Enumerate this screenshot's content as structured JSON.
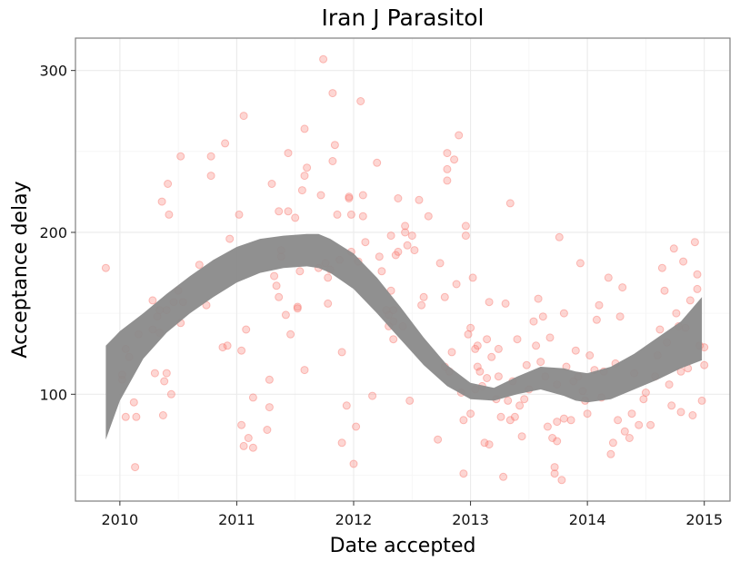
{
  "chart_data": {
    "type": "scatter",
    "title": "Iran J Parasitol",
    "xlabel": "Date accepted",
    "ylabel": "Acceptance delay",
    "xlim": [
      2009.62,
      2015.22
    ],
    "ylim": [
      34,
      320
    ],
    "x_ticks": [
      2010,
      2011,
      2012,
      2013,
      2014,
      2015
    ],
    "x_tick_labels": [
      "2010",
      "2011",
      "2012",
      "2013",
      "2014",
      "2015"
    ],
    "y_ticks": [
      100,
      200,
      300
    ],
    "y_tick_labels": [
      "100",
      "200",
      "300"
    ],
    "grid": true,
    "point_color": "#f8766d",
    "band_color": "#8a8a8a",
    "smooth_band": {
      "x": [
        2009.88,
        2010.0,
        2010.2,
        2010.4,
        2010.6,
        2010.8,
        2011.0,
        2011.2,
        2011.4,
        2011.6,
        2011.7,
        2011.8,
        2012.0,
        2012.2,
        2012.4,
        2012.6,
        2012.8,
        2013.0,
        2013.2,
        2013.4,
        2013.6,
        2013.8,
        2013.9,
        2014.0,
        2014.2,
        2014.4,
        2014.6,
        2014.8,
        2014.98
      ],
      "lower": [
        72,
        96,
        122,
        138,
        150,
        160,
        169,
        175,
        178,
        179,
        178,
        175,
        165,
        150,
        134,
        118,
        105,
        97,
        96,
        100,
        103,
        99,
        96,
        95,
        97,
        103,
        109,
        116,
        121
      ],
      "upper": [
        130,
        139,
        150,
        162,
        173,
        183,
        191,
        196,
        198,
        199,
        199,
        196,
        187,
        172,
        154,
        135,
        118,
        107,
        104,
        111,
        117,
        116,
        114,
        113,
        117,
        125,
        135,
        145,
        160
      ]
    },
    "points": [
      [
        2009.88,
        178
      ],
      [
        2010.02,
        109
      ],
      [
        2010.02,
        112
      ],
      [
        2010.05,
        86
      ],
      [
        2010.05,
        128
      ],
      [
        2010.08,
        123
      ],
      [
        2010.13,
        55
      ],
      [
        2010.12,
        95
      ],
      [
        2010.14,
        86
      ],
      [
        2010.16,
        137
      ],
      [
        2010.28,
        158
      ],
      [
        2010.28,
        140
      ],
      [
        2010.3,
        113
      ],
      [
        2010.32,
        148
      ],
      [
        2010.34,
        152
      ],
      [
        2010.34,
        138
      ],
      [
        2010.36,
        219
      ],
      [
        2010.37,
        87
      ],
      [
        2010.38,
        108
      ],
      [
        2010.4,
        113
      ],
      [
        2010.4,
        152
      ],
      [
        2010.41,
        230
      ],
      [
        2010.42,
        211
      ],
      [
        2010.44,
        100
      ],
      [
        2010.46,
        157
      ],
      [
        2010.5,
        164
      ],
      [
        2010.52,
        247
      ],
      [
        2010.52,
        144
      ],
      [
        2010.54,
        157
      ],
      [
        2010.68,
        180
      ],
      [
        2010.74,
        155
      ],
      [
        2010.78,
        247
      ],
      [
        2010.78,
        235
      ],
      [
        2010.88,
        129
      ],
      [
        2010.9,
        255
      ],
      [
        2010.92,
        130
      ],
      [
        2010.94,
        196
      ],
      [
        2011.02,
        211
      ],
      [
        2011.04,
        81
      ],
      [
        2011.04,
        127
      ],
      [
        2011.06,
        68
      ],
      [
        2011.06,
        272
      ],
      [
        2011.08,
        140
      ],
      [
        2011.1,
        73
      ],
      [
        2011.14,
        67
      ],
      [
        2011.14,
        98
      ],
      [
        2011.26,
        78
      ],
      [
        2011.28,
        109
      ],
      [
        2011.28,
        92
      ],
      [
        2011.3,
        230
      ],
      [
        2011.32,
        173
      ],
      [
        2011.34,
        167
      ],
      [
        2011.36,
        213
      ],
      [
        2011.36,
        160
      ],
      [
        2011.38,
        189
      ],
      [
        2011.38,
        185
      ],
      [
        2011.42,
        149
      ],
      [
        2011.44,
        213
      ],
      [
        2011.44,
        249
      ],
      [
        2011.46,
        137
      ],
      [
        2011.5,
        209
      ],
      [
        2011.52,
        154
      ],
      [
        2011.52,
        153
      ],
      [
        2011.54,
        176
      ],
      [
        2011.56,
        226
      ],
      [
        2011.58,
        264
      ],
      [
        2011.58,
        235
      ],
      [
        2011.58,
        115
      ],
      [
        2011.6,
        240
      ],
      [
        2011.7,
        178
      ],
      [
        2011.72,
        223
      ],
      [
        2011.74,
        307
      ],
      [
        2011.76,
        181
      ],
      [
        2011.78,
        172
      ],
      [
        2011.78,
        156
      ],
      [
        2011.8,
        177
      ],
      [
        2011.82,
        244
      ],
      [
        2011.82,
        286
      ],
      [
        2011.84,
        254
      ],
      [
        2011.86,
        211
      ],
      [
        2011.88,
        183
      ],
      [
        2011.9,
        126
      ],
      [
        2011.9,
        70
      ],
      [
        2011.94,
        93
      ],
      [
        2011.96,
        222
      ],
      [
        2011.96,
        221
      ],
      [
        2011.98,
        211
      ],
      [
        2011.98,
        188
      ],
      [
        2012.0,
        57
      ],
      [
        2012.02,
        80
      ],
      [
        2012.04,
        182
      ],
      [
        2012.06,
        281
      ],
      [
        2012.08,
        210
      ],
      [
        2012.08,
        223
      ],
      [
        2012.1,
        194
      ],
      [
        2012.16,
        99
      ],
      [
        2012.2,
        243
      ],
      [
        2012.22,
        185
      ],
      [
        2012.24,
        176
      ],
      [
        2012.28,
        152
      ],
      [
        2012.3,
        142
      ],
      [
        2012.3,
        149
      ],
      [
        2012.32,
        164
      ],
      [
        2012.32,
        198
      ],
      [
        2012.34,
        145
      ],
      [
        2012.34,
        134
      ],
      [
        2012.34,
        152
      ],
      [
        2012.36,
        186
      ],
      [
        2012.38,
        221
      ],
      [
        2012.38,
        188
      ],
      [
        2012.42,
        142
      ],
      [
        2012.44,
        204
      ],
      [
        2012.44,
        200
      ],
      [
        2012.46,
        192
      ],
      [
        2012.48,
        96
      ],
      [
        2012.5,
        198
      ],
      [
        2012.52,
        189
      ],
      [
        2012.56,
        220
      ],
      [
        2012.58,
        155
      ],
      [
        2012.6,
        160
      ],
      [
        2012.64,
        210
      ],
      [
        2012.72,
        72
      ],
      [
        2012.74,
        181
      ],
      [
        2012.78,
        160
      ],
      [
        2012.78,
        117
      ],
      [
        2012.8,
        232
      ],
      [
        2012.8,
        239
      ],
      [
        2012.8,
        249
      ],
      [
        2012.82,
        114
      ],
      [
        2012.84,
        126
      ],
      [
        2012.86,
        245
      ],
      [
        2012.88,
        168
      ],
      [
        2012.9,
        260
      ],
      [
        2012.92,
        101
      ],
      [
        2012.94,
        51
      ],
      [
        2012.94,
        84
      ],
      [
        2012.96,
        204
      ],
      [
        2012.96,
        198
      ],
      [
        2012.98,
        137
      ],
      [
        2013.0,
        141
      ],
      [
        2013.0,
        88
      ],
      [
        2013.02,
        172
      ],
      [
        2013.04,
        128
      ],
      [
        2013.04,
        103
      ],
      [
        2013.06,
        130
      ],
      [
        2013.06,
        117
      ],
      [
        2013.08,
        114
      ],
      [
        2013.1,
        105
      ],
      [
        2013.12,
        70
      ],
      [
        2013.14,
        110
      ],
      [
        2013.14,
        134
      ],
      [
        2013.16,
        157
      ],
      [
        2013.16,
        69
      ],
      [
        2013.18,
        123
      ],
      [
        2013.22,
        97
      ],
      [
        2013.24,
        128
      ],
      [
        2013.24,
        111
      ],
      [
        2013.26,
        86
      ],
      [
        2013.28,
        49
      ],
      [
        2013.3,
        156
      ],
      [
        2013.32,
        96
      ],
      [
        2013.34,
        84
      ],
      [
        2013.34,
        218
      ],
      [
        2013.36,
        108
      ],
      [
        2013.38,
        86
      ],
      [
        2013.4,
        134
      ],
      [
        2013.42,
        93
      ],
      [
        2013.44,
        74
      ],
      [
        2013.46,
        97
      ],
      [
        2013.48,
        118
      ],
      [
        2013.5,
        103
      ],
      [
        2013.54,
        145
      ],
      [
        2013.56,
        130
      ],
      [
        2013.58,
        159
      ],
      [
        2013.6,
        120
      ],
      [
        2013.62,
        148
      ],
      [
        2013.64,
        111
      ],
      [
        2013.66,
        80
      ],
      [
        2013.68,
        135
      ],
      [
        2013.7,
        73
      ],
      [
        2013.72,
        55
      ],
      [
        2013.72,
        51
      ],
      [
        2013.74,
        71
      ],
      [
        2013.74,
        83
      ],
      [
        2013.74,
        106
      ],
      [
        2013.76,
        197
      ],
      [
        2013.78,
        47
      ],
      [
        2013.8,
        85
      ],
      [
        2013.8,
        150
      ],
      [
        2013.82,
        117
      ],
      [
        2013.86,
        84
      ],
      [
        2013.88,
        108
      ],
      [
        2013.9,
        127
      ],
      [
        2013.92,
        111
      ],
      [
        2013.94,
        181
      ],
      [
        2013.96,
        102
      ],
      [
        2013.98,
        96
      ],
      [
        2014.0,
        88
      ],
      [
        2014.02,
        124
      ],
      [
        2014.06,
        115
      ],
      [
        2014.08,
        146
      ],
      [
        2014.1,
        155
      ],
      [
        2014.12,
        98
      ],
      [
        2014.14,
        114
      ],
      [
        2014.18,
        172
      ],
      [
        2014.2,
        63
      ],
      [
        2014.22,
        70
      ],
      [
        2014.24,
        119
      ],
      [
        2014.26,
        84
      ],
      [
        2014.28,
        148
      ],
      [
        2014.3,
        166
      ],
      [
        2014.32,
        77
      ],
      [
        2014.36,
        73
      ],
      [
        2014.38,
        88
      ],
      [
        2014.4,
        113
      ],
      [
        2014.44,
        81
      ],
      [
        2014.48,
        97
      ],
      [
        2014.5,
        101
      ],
      [
        2014.54,
        81
      ],
      [
        2014.58,
        111
      ],
      [
        2014.6,
        124
      ],
      [
        2014.62,
        140
      ],
      [
        2014.64,
        178
      ],
      [
        2014.66,
        164
      ],
      [
        2014.68,
        132
      ],
      [
        2014.7,
        106
      ],
      [
        2014.72,
        93
      ],
      [
        2014.74,
        190
      ],
      [
        2014.76,
        150
      ],
      [
        2014.78,
        142
      ],
      [
        2014.8,
        114
      ],
      [
        2014.8,
        89
      ],
      [
        2014.82,
        182
      ],
      [
        2014.84,
        141
      ],
      [
        2014.86,
        116
      ],
      [
        2014.88,
        158
      ],
      [
        2014.9,
        87
      ],
      [
        2014.92,
        194
      ],
      [
        2014.94,
        174
      ],
      [
        2014.94,
        165
      ],
      [
        2014.96,
        130
      ],
      [
        2014.98,
        96
      ],
      [
        2015.0,
        129
      ],
      [
        2015.0,
        118
      ]
    ]
  }
}
